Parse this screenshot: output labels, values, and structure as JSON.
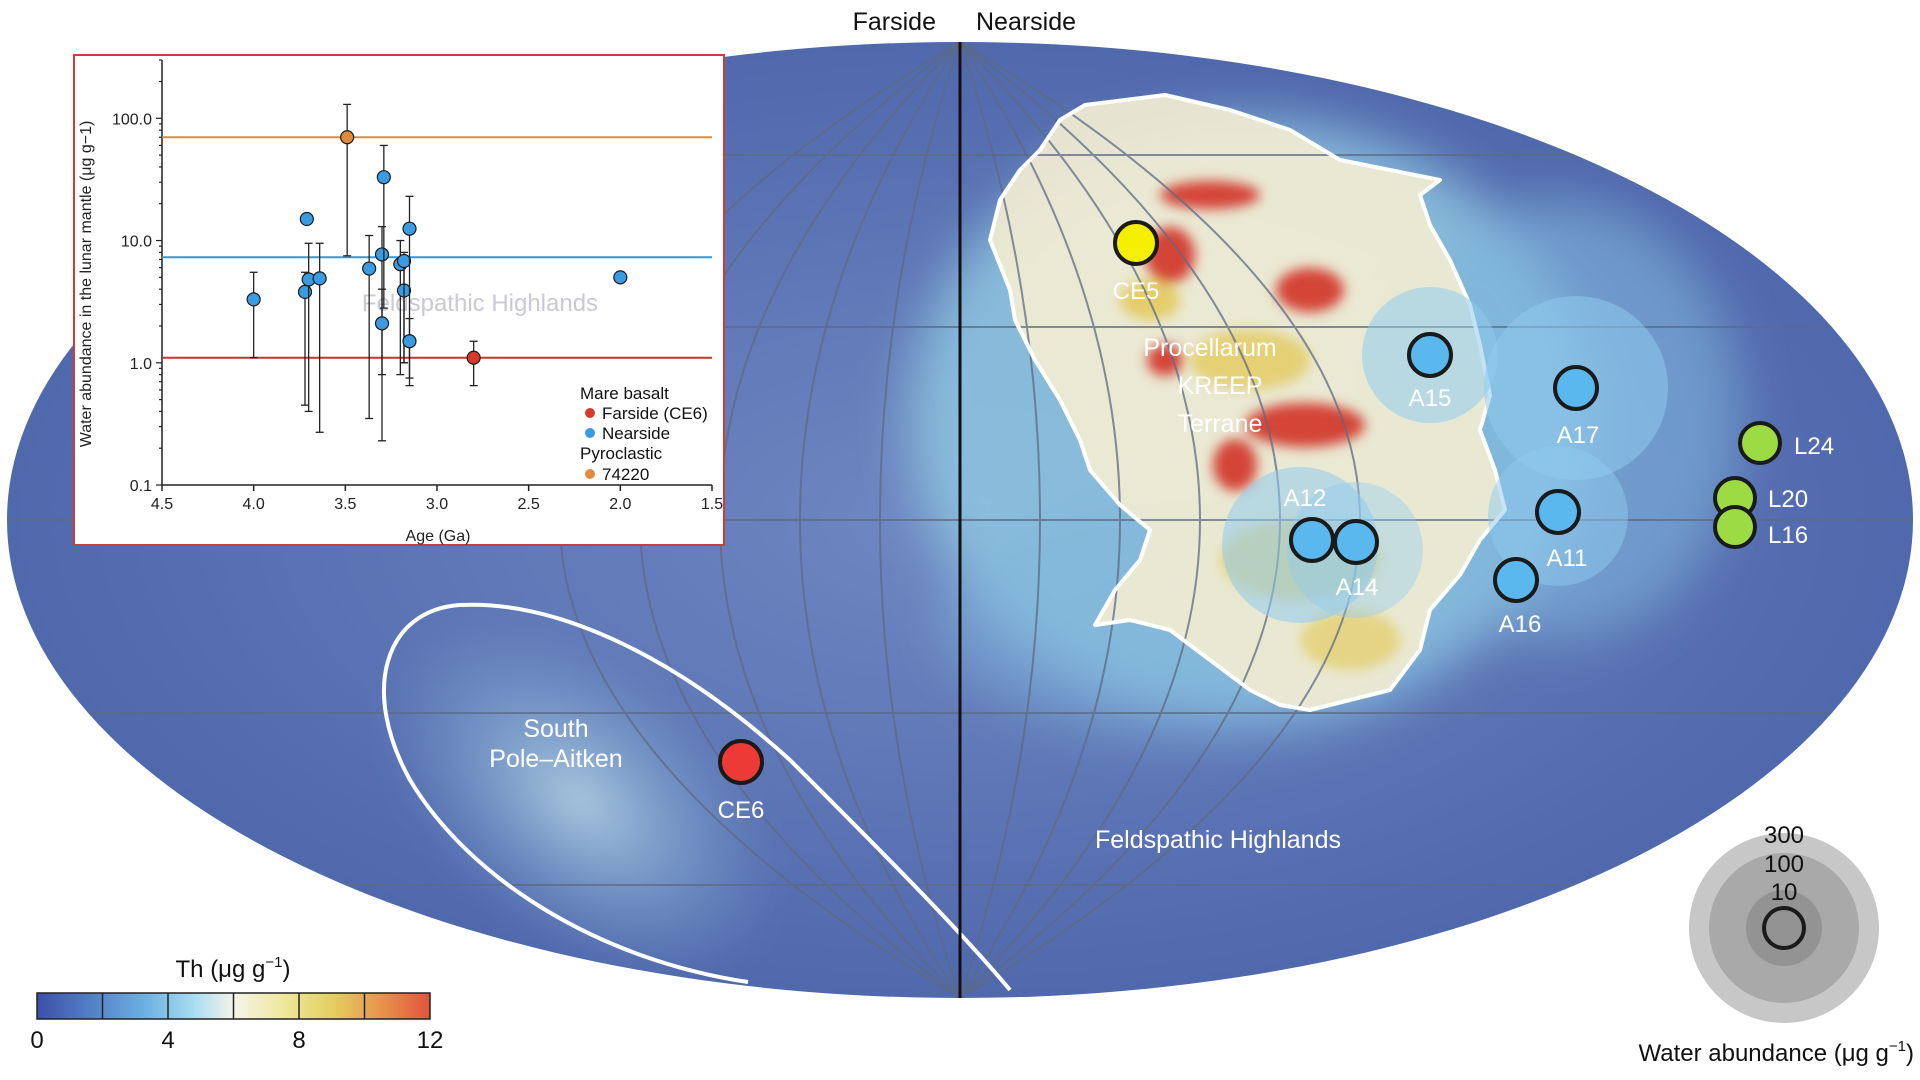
{
  "header": {
    "farside": "Farside",
    "nearside": "Nearside"
  },
  "map_labels": {
    "procellarum": [
      "Procellarum",
      "KREEP",
      "Terrane"
    ],
    "spa": [
      "South",
      "Pole–Aitken"
    ],
    "feldspathic": "Feldspathic Highlands",
    "inset_watermark": "Feldspathic Highlands"
  },
  "sites": [
    {
      "id": "CE5",
      "label": "CE5",
      "kind": "farside-sample-yellow",
      "color": "#f4ee00"
    },
    {
      "id": "CE6",
      "label": "CE6",
      "kind": "farside",
      "color": "#ee3a36"
    },
    {
      "id": "A15",
      "label": "A15",
      "kind": "nearside",
      "color": "#5ab8ee"
    },
    {
      "id": "A17",
      "label": "A17",
      "kind": "nearside",
      "color": "#5ab8ee"
    },
    {
      "id": "A12",
      "label": "A12",
      "kind": "nearside",
      "color": "#5ab8ee"
    },
    {
      "id": "A14",
      "label": "A14",
      "kind": "nearside",
      "color": "#5ab8ee"
    },
    {
      "id": "A11",
      "label": "A11",
      "kind": "nearside",
      "color": "#5ab8ee"
    },
    {
      "id": "A16",
      "label": "A16",
      "kind": "nearside",
      "color": "#5ab8ee"
    },
    {
      "id": "L24",
      "label": "L24",
      "kind": "luna",
      "color": "#9ddb45"
    },
    {
      "id": "L20",
      "label": "L20",
      "kind": "luna",
      "color": "#9ddb45"
    },
    {
      "id": "L16",
      "label": "L16",
      "kind": "luna",
      "color": "#9ddb45"
    }
  ],
  "colorbar": {
    "title_main": "Th (μg g",
    "title_exp": "−1",
    "title_close": ")",
    "ticks": [
      "0",
      "4",
      "8",
      "12"
    ],
    "range": [
      0,
      12
    ],
    "colors": [
      "#3d4fa8",
      "#5079c4",
      "#6fb2e3",
      "#a9dcf2",
      "#f4f4ea",
      "#f0e9a0",
      "#e3d060",
      "#e8924a",
      "#e2533c"
    ]
  },
  "size_legend": {
    "values": [
      "300",
      "100",
      "10"
    ],
    "title_main": "Water abundance (μg g",
    "title_exp": "−1",
    "title_close": ")"
  },
  "chart_data": {
    "type": "scatter",
    "xlabel": "Age (Ga)",
    "ylabel": "Water abundance in the lunar mantle (μg g−1)",
    "xlim": [
      4.5,
      1.5
    ],
    "ylim": [
      0.1,
      300
    ],
    "yscale": "log",
    "x_ticks": [
      "4.5",
      "4.0",
      "3.5",
      "3.0",
      "2.5",
      "2.0",
      "1.5"
    ],
    "y_ticks": [
      "0.1",
      "1.0",
      "10.0",
      "100.0"
    ],
    "reference_lines": [
      {
        "series": "Farside (CE6)",
        "y": 1.1,
        "color": "#c0392b"
      },
      {
        "series": "Nearside",
        "y": 7.3,
        "color": "#3498db"
      },
      {
        "series": "74220",
        "y": 70,
        "color": "#e08a3c"
      }
    ],
    "legend": {
      "title1": "Mare basalt",
      "entry1": "Farside (CE6)",
      "entry2": "Nearside",
      "title2": "Pyroclastic",
      "entry3": "74220",
      "placement": "bottom-right"
    },
    "series": [
      {
        "name": "Farside (CE6)",
        "color": "#d63a2f",
        "points": [
          {
            "x": 2.8,
            "y": 1.1,
            "lo": 0.65,
            "hi": 1.5
          }
        ]
      },
      {
        "name": "Nearside",
        "color": "#3b9be0",
        "points": [
          {
            "x": 4.0,
            "y": 3.3,
            "lo": 1.1,
            "hi": 5.5
          },
          {
            "x": 3.72,
            "y": 3.8,
            "lo": 0.45,
            "hi": 5.5
          },
          {
            "x": 3.71,
            "y": 15.0,
            "lo": 14.0,
            "hi": 16.0
          },
          {
            "x": 3.7,
            "y": 4.8,
            "lo": 0.4,
            "hi": 9.5
          },
          {
            "x": 3.64,
            "y": 4.9,
            "lo": 0.27,
            "hi": 9.5
          },
          {
            "x": 3.37,
            "y": 5.9,
            "lo": 0.35,
            "hi": 11.0
          },
          {
            "x": 3.3,
            "y": 7.7,
            "lo": 0.23,
            "hi": 13.0
          },
          {
            "x": 3.29,
            "y": 33.0,
            "lo": 2.8,
            "hi": 60.0
          },
          {
            "x": 3.3,
            "y": 2.1,
            "lo": 0.8,
            "hi": 4.0
          },
          {
            "x": 3.2,
            "y": 6.4,
            "lo": 0.8,
            "hi": 10.0
          },
          {
            "x": 3.18,
            "y": 3.9,
            "lo": 1.0,
            "hi": 7.0
          },
          {
            "x": 3.18,
            "y": 6.8,
            "lo": 1.0,
            "hi": 8.0
          },
          {
            "x": 3.15,
            "y": 12.5,
            "lo": 0.65,
            "hi": 23.0
          },
          {
            "x": 3.15,
            "y": 1.5,
            "lo": 0.75,
            "hi": 2.3
          },
          {
            "x": 2.0,
            "y": 5.0,
            "lo": 4.7,
            "hi": 5.3
          }
        ]
      },
      {
        "name": "74220",
        "color": "#e08a3c",
        "points": [
          {
            "x": 3.49,
            "y": 70.0,
            "lo": 7.5,
            "hi": 130.0
          }
        ]
      }
    ]
  }
}
